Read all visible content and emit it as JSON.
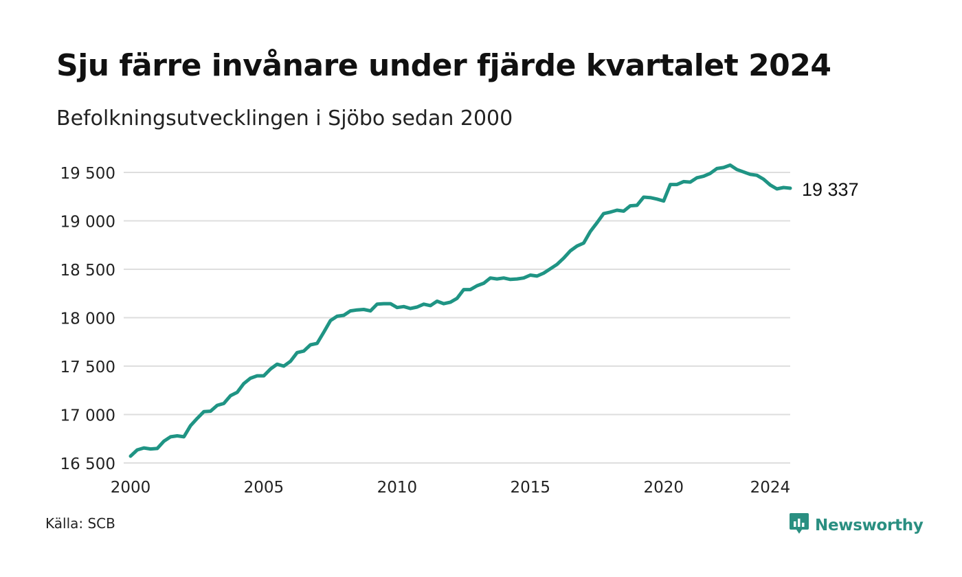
{
  "header": {
    "title": "Sju färre invånare under fjärde kvartalet 2024",
    "subtitle": "Befolkningsutvecklingen i Sjöbo sedan 2000"
  },
  "footer": {
    "source": "Källa: SCB",
    "brand": "Newsworthy"
  },
  "colors": {
    "line": "#1f9484",
    "grid": "#dedede",
    "brand": "#2a8f81"
  },
  "chart_data": {
    "type": "line",
    "title": "Sju färre invånare under fjärde kvartalet 2024",
    "subtitle": "Befolkningsutvecklingen i Sjöbo sedan 2000",
    "xlabel": "",
    "ylabel": "",
    "xlim": [
      2000,
      2024.75
    ],
    "ylim": [
      16500,
      19600
    ],
    "xticks": [
      {
        "value": 2000,
        "label": "2000"
      },
      {
        "value": 2005,
        "label": "2005"
      },
      {
        "value": 2010,
        "label": "2010"
      },
      {
        "value": 2015,
        "label": "2015"
      },
      {
        "value": 2020,
        "label": "2020"
      },
      {
        "value": 2024,
        "label": "2024"
      }
    ],
    "yticks": [
      {
        "value": 16500,
        "label": "16 500"
      },
      {
        "value": 17000,
        "label": "17 000"
      },
      {
        "value": 17500,
        "label": "17 500"
      },
      {
        "value": 18000,
        "label": "18 000"
      },
      {
        "value": 18500,
        "label": "18 500"
      },
      {
        "value": 19000,
        "label": "19 000"
      },
      {
        "value": 19500,
        "label": "19 500"
      }
    ],
    "grid": "horizontal",
    "end_label": "19 337",
    "x": [
      2000.0,
      2000.25,
      2000.5,
      2000.75,
      2001.0,
      2001.25,
      2001.5,
      2001.75,
      2002.0,
      2002.25,
      2002.5,
      2002.75,
      2003.0,
      2003.25,
      2003.5,
      2003.75,
      2004.0,
      2004.25,
      2004.5,
      2004.75,
      2005.0,
      2005.25,
      2005.5,
      2005.75,
      2006.0,
      2006.25,
      2006.5,
      2006.75,
      2007.0,
      2007.25,
      2007.5,
      2007.75,
      2008.0,
      2008.25,
      2008.5,
      2008.75,
      2009.0,
      2009.25,
      2009.5,
      2009.75,
      2010.0,
      2010.25,
      2010.5,
      2010.75,
      2011.0,
      2011.25,
      2011.5,
      2011.75,
      2012.0,
      2012.25,
      2012.5,
      2012.75,
      2013.0,
      2013.25,
      2013.5,
      2013.75,
      2014.0,
      2014.25,
      2014.5,
      2014.75,
      2015.0,
      2015.25,
      2015.5,
      2015.75,
      2016.0,
      2016.25,
      2016.5,
      2016.75,
      2017.0,
      2017.25,
      2017.5,
      2017.75,
      2018.0,
      2018.25,
      2018.5,
      2018.75,
      2019.0,
      2019.25,
      2019.5,
      2019.75,
      2020.0,
      2020.25,
      2020.5,
      2020.75,
      2021.0,
      2021.25,
      2021.5,
      2021.75,
      2022.0,
      2022.25,
      2022.5,
      2022.75,
      2023.0,
      2023.25,
      2023.5,
      2023.75,
      2024.0,
      2024.25,
      2024.5,
      2024.75
    ],
    "series": [
      {
        "values": [
          16570,
          16635,
          16655,
          16645,
          16650,
          16725,
          16770,
          16780,
          16770,
          16885,
          16960,
          17030,
          17035,
          17095,
          17115,
          17195,
          17230,
          17320,
          17375,
          17400,
          17400,
          17470,
          17520,
          17500,
          17550,
          17640,
          17655,
          17720,
          17735,
          17850,
          17970,
          18015,
          18025,
          18070,
          18080,
          18085,
          18070,
          18140,
          18145,
          18145,
          18105,
          18115,
          18095,
          18110,
          18140,
          18125,
          18170,
          18145,
          18160,
          18200,
          18290,
          18290,
          18330,
          18355,
          18410,
          18400,
          18410,
          18395,
          18400,
          18410,
          18440,
          18430,
          18460,
          18505,
          18550,
          18615,
          18690,
          18740,
          18770,
          18890,
          18980,
          19075,
          19090,
          19110,
          19100,
          19155,
          19160,
          19245,
          19240,
          19225,
          19205,
          19375,
          19375,
          19405,
          19400,
          19445,
          19460,
          19490,
          19540,
          19550,
          19575,
          19530,
          19505,
          19480,
          19470,
          19430,
          19370,
          19330,
          19344,
          19337
        ]
      }
    ]
  }
}
